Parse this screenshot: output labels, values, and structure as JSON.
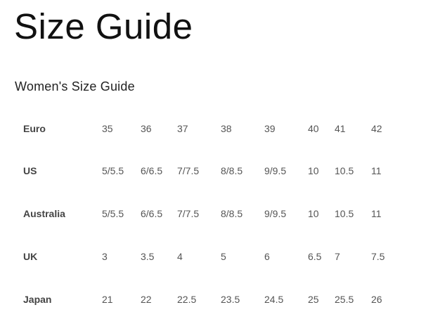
{
  "title": "Size Guide",
  "subtitle": "Women's Size Guide",
  "table": {
    "rows": [
      {
        "label": "Euro",
        "values": [
          "35",
          "36",
          "37",
          "38",
          "39",
          "40",
          "41",
          "42"
        ]
      },
      {
        "label": "US",
        "values": [
          "5/5.5",
          "6/6.5",
          "7/7.5",
          "8/8.5",
          "9/9.5",
          "10",
          "10.5",
          "11"
        ]
      },
      {
        "label": "Australia",
        "values": [
          "5/5.5",
          "6/6.5",
          "7/7.5",
          "8/8.5",
          "9/9.5",
          "10",
          "10.5",
          "11"
        ]
      },
      {
        "label": "UK",
        "values": [
          "3",
          "3.5",
          "4",
          "5",
          "6",
          "6.5",
          "7",
          "7.5"
        ]
      },
      {
        "label": "Japan",
        "values": [
          "21",
          "22",
          "22.5",
          "23.5",
          "24.5",
          "25",
          "25.5",
          "26"
        ]
      }
    ]
  }
}
